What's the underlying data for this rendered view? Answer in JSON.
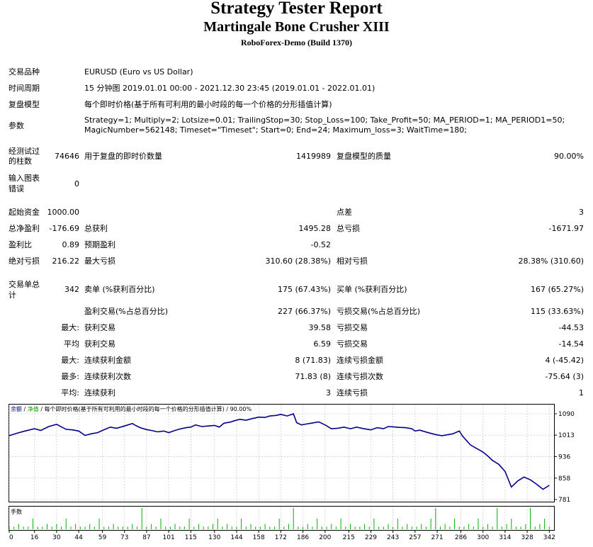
{
  "header": {
    "title": "Strategy Tester Report",
    "subtitle": "Martingale Bone Crusher XIII",
    "server": "RoboForex-Demo (Build 1370)"
  },
  "info": {
    "symbol_label": "交易品种",
    "symbol_value": "EURUSD (Euro vs US Dollar)",
    "period_label": "时间周期",
    "period_value": "15 分钟图 2019.01.01 00:00 - 2021.12.30 23:45 (2019.01.01 - 2022.01.01)",
    "model_label": "复盘模型",
    "model_value": "每个即时价格(基于所有可利用的最小时段的每一个价格的分形插值计算)",
    "params_label": "参数",
    "params_line1": "Strategy=1; Multiply=2; Lotsize=0.01; TrailingStop=30; Stop_Loss=100; Take_Profit=50; MA_PERIOD=1; MA_PERIOD1=50;",
    "params_line2": "MagicNumber=562148; Timeset=\"Timeset\"; Start=0; End=24; Maximum_loss=3; WaitTime=180;"
  },
  "stats": {
    "bars_label": "经测试过的柱数",
    "bars_label_l1": "经测试过",
    "bars_label_l2": "的柱数",
    "bars_value": "74646",
    "ticks_label": "用于复盘的即时价数量",
    "ticks_value": "1419989",
    "quality_label": "复盘模型的质量",
    "quality_value": "90.00%",
    "errors_label_l1": "输入图表",
    "errors_label_l2": "错误",
    "errors_value": "0",
    "deposit_label": "起始资金",
    "deposit_value": "1000.00",
    "spread_label": "点差",
    "spread_value": "3",
    "net_label": "总净盈利",
    "net_value": "-176.69",
    "gross_profit_label": "总获利",
    "gross_profit_value": "1495.28",
    "gross_loss_label": "总亏损",
    "gross_loss_value": "-1671.97",
    "pf_label": "盈利比",
    "pf_value": "0.89",
    "expected_label": "预期盈利",
    "expected_value": "-0.52",
    "abs_dd_label": "绝对亏损",
    "abs_dd_value": "216.22",
    "max_dd_label": "最大亏损",
    "max_dd_value": "310.60 (28.38%)",
    "rel_dd_label": "相对亏损",
    "rel_dd_value": "28.38% (310.60)",
    "trades_label_l1": "交易单总",
    "trades_label_l2": "计",
    "trades_value": "342",
    "short_label": "卖单 (%获利百分比)",
    "short_value": "175 (67.43%)",
    "long_label": "买单 (%获利百分比)",
    "long_value": "167 (65.27%)",
    "profit_trades_label": "盈利交易(%占总百分比)",
    "profit_trades_value": "227 (66.37%)",
    "loss_trades_label": "亏损交易(%占总百分比)",
    "loss_trades_value": "115 (33.63%)",
    "max_label": "最大:",
    "largest_profit_label": "获利交易",
    "largest_profit_value": "39.58",
    "largest_loss_label": "亏损交易",
    "largest_loss_value": "-44.53",
    "avg_label": "平均",
    "avg_profit_label": "获利交易",
    "avg_profit_value": "6.59",
    "avg_loss_label": "亏损交易",
    "avg_loss_value": "-14.54",
    "max2_label": "最大:",
    "max_consec_wins_label": "连续获利金额",
    "max_consec_wins_value": "8 (71.83)",
    "max_consec_losses_label": "连续亏损金额",
    "max_consec_losses_value": "4 (-45.42)",
    "most_label": "最多:",
    "max_consec_profit_label": "连续获利次数",
    "max_consec_profit_value": "71.83 (8)",
    "max_consec_loss_label": "连续亏损次数",
    "max_consec_loss_value": "-75.64 (3)",
    "avg2_label": "平均:",
    "avg_consec_wins_label": "连续获利",
    "avg_consec_wins_value": "3",
    "avg_consec_losses_label": "连续亏损",
    "avg_consec_losses_value": "1"
  },
  "chart_data": [
    {
      "type": "line",
      "legend": {
        "balance": "余额",
        "separator1": " / ",
        "equity": "净值",
        "separator2": " / ",
        "text": "每个即时价格(基于所有可利用的最小时段的每一个价格的分形插值计算) / 90.00%"
      },
      "xlabel": "",
      "ylabel": "",
      "ylim": [
        781,
        1090
      ],
      "ytick_labels": [
        "1090",
        "1013",
        "936",
        "858",
        "781"
      ],
      "ytick_values": [
        1090,
        1013,
        936,
        858,
        781
      ],
      "grid": true,
      "colors": {
        "balance": "#00008b",
        "grid": "#c0c0c0"
      },
      "series": [
        {
          "x": [
            0,
            5,
            10,
            16,
            20,
            25,
            30,
            33,
            36,
            40,
            44,
            48,
            52,
            56,
            59,
            64,
            68,
            73,
            78,
            80,
            83,
            87,
            90,
            94,
            98,
            101,
            105,
            108,
            112,
            115,
            118,
            122,
            126,
            130,
            133,
            136,
            140,
            142,
            146,
            150,
            154,
            158,
            162,
            165,
            169,
            172,
            176,
            180,
            182,
            185,
            188,
            192,
            196,
            200,
            204,
            208,
            212,
            216,
            220,
            224,
            229,
            233,
            237,
            240,
            243,
            247,
            251,
            255,
            257,
            260,
            264,
            268,
            271,
            274,
            278,
            281,
            285,
            287,
            292,
            296,
            300,
            303,
            306,
            310,
            314,
            318,
            322,
            326,
            330,
            334,
            338,
            342
          ],
          "values": [
            1011,
            1020,
            1028,
            1036,
            1030,
            1044,
            1052,
            1043,
            1034,
            1032,
            1028,
            1012,
            1018,
            1022,
            1030,
            1042,
            1038,
            1046,
            1055,
            1048,
            1040,
            1033,
            1030,
            1025,
            1028,
            1022,
            1030,
            1035,
            1040,
            1042,
            1050,
            1044,
            1046,
            1048,
            1042,
            1056,
            1060,
            1064,
            1070,
            1067,
            1073,
            1078,
            1077,
            1082,
            1084,
            1088,
            1082,
            1090,
            1058,
            1050,
            1053,
            1057,
            1061,
            1050,
            1036,
            1038,
            1042,
            1036,
            1042,
            1037,
            1032,
            1040,
            1036,
            1044,
            1043,
            1041,
            1040,
            1036,
            1028,
            1031,
            1024,
            1018,
            1014,
            1011,
            1015,
            1018,
            1028,
            1010,
            978,
            965,
            952,
            938,
            922,
            908,
            882,
            826,
            848,
            862,
            852,
            836,
            818,
            832
          ]
        }
      ]
    },
    {
      "type": "bar",
      "legend_text": "手数",
      "xlabel": "",
      "ylabel": "",
      "xtick_labels": [
        "0",
        "16",
        "30",
        "44",
        "59",
        "73",
        "87",
        "101",
        "115",
        "130",
        "144",
        "158",
        "172",
        "186",
        "200",
        "215",
        "229",
        "243",
        "257",
        "271",
        "286",
        "300",
        "314",
        "328",
        "342"
      ],
      "xtick_values": [
        0,
        16,
        30,
        44,
        59,
        73,
        87,
        101,
        115,
        130,
        144,
        158,
        172,
        186,
        200,
        215,
        229,
        243,
        257,
        271,
        286,
        300,
        314,
        328,
        342
      ],
      "xlim": [
        0,
        345
      ],
      "ylim": [
        0,
        0.08
      ],
      "colors": {
        "bar": "#00b000"
      },
      "x": [
        0,
        3,
        6,
        9,
        12,
        15,
        18,
        21,
        24,
        27,
        30,
        33,
        36,
        39,
        42,
        45,
        48,
        51,
        54,
        57,
        60,
        63,
        66,
        69,
        72,
        75,
        78,
        81,
        84,
        87,
        90,
        93,
        96,
        99,
        102,
        105,
        108,
        111,
        114,
        117,
        120,
        123,
        126,
        129,
        132,
        135,
        138,
        141,
        144,
        147,
        150,
        153,
        156,
        159,
        162,
        165,
        168,
        171,
        174,
        177,
        180,
        183,
        186,
        189,
        192,
        195,
        198,
        201,
        204,
        207,
        210,
        213,
        216,
        219,
        222,
        225,
        228,
        231,
        234,
        237,
        240,
        243,
        246,
        249,
        252,
        255,
        258,
        261,
        264,
        267,
        270,
        273,
        276,
        279,
        282,
        285,
        288,
        291,
        294,
        297,
        300,
        303,
        306,
        309,
        312,
        315,
        318,
        321,
        324,
        327,
        330,
        333,
        336,
        339,
        342
      ],
      "values": [
        0.01,
        0.01,
        0.02,
        0.01,
        0.01,
        0.04,
        0.01,
        0.01,
        0.02,
        0.01,
        0.02,
        0.01,
        0.04,
        0.01,
        0.02,
        0.01,
        0.01,
        0.02,
        0.01,
        0.04,
        0.01,
        0.01,
        0.02,
        0.01,
        0.01,
        0.01,
        0.02,
        0.01,
        0.08,
        0.01,
        0.02,
        0.01,
        0.04,
        0.01,
        0.01,
        0.02,
        0.01,
        0.01,
        0.04,
        0.01,
        0.02,
        0.01,
        0.01,
        0.02,
        0.04,
        0.01,
        0.02,
        0.01,
        0.01,
        0.04,
        0.01,
        0.02,
        0.01,
        0.01,
        0.02,
        0.01,
        0.01,
        0.04,
        0.01,
        0.02,
        0.08,
        0.01,
        0.01,
        0.02,
        0.01,
        0.04,
        0.01,
        0.01,
        0.02,
        0.01,
        0.04,
        0.01,
        0.02,
        0.01,
        0.01,
        0.02,
        0.01,
        0.04,
        0.01,
        0.01,
        0.02,
        0.01,
        0.04,
        0.01,
        0.02,
        0.01,
        0.01,
        0.02,
        0.01,
        0.04,
        0.08,
        0.01,
        0.02,
        0.01,
        0.04,
        0.01,
        0.01,
        0.02,
        0.01,
        0.04,
        0.01,
        0.02,
        0.01,
        0.08,
        0.01,
        0.02,
        0.04,
        0.01,
        0.01,
        0.02,
        0.08,
        0.01,
        0.02,
        0.04,
        0.01
      ]
    }
  ]
}
